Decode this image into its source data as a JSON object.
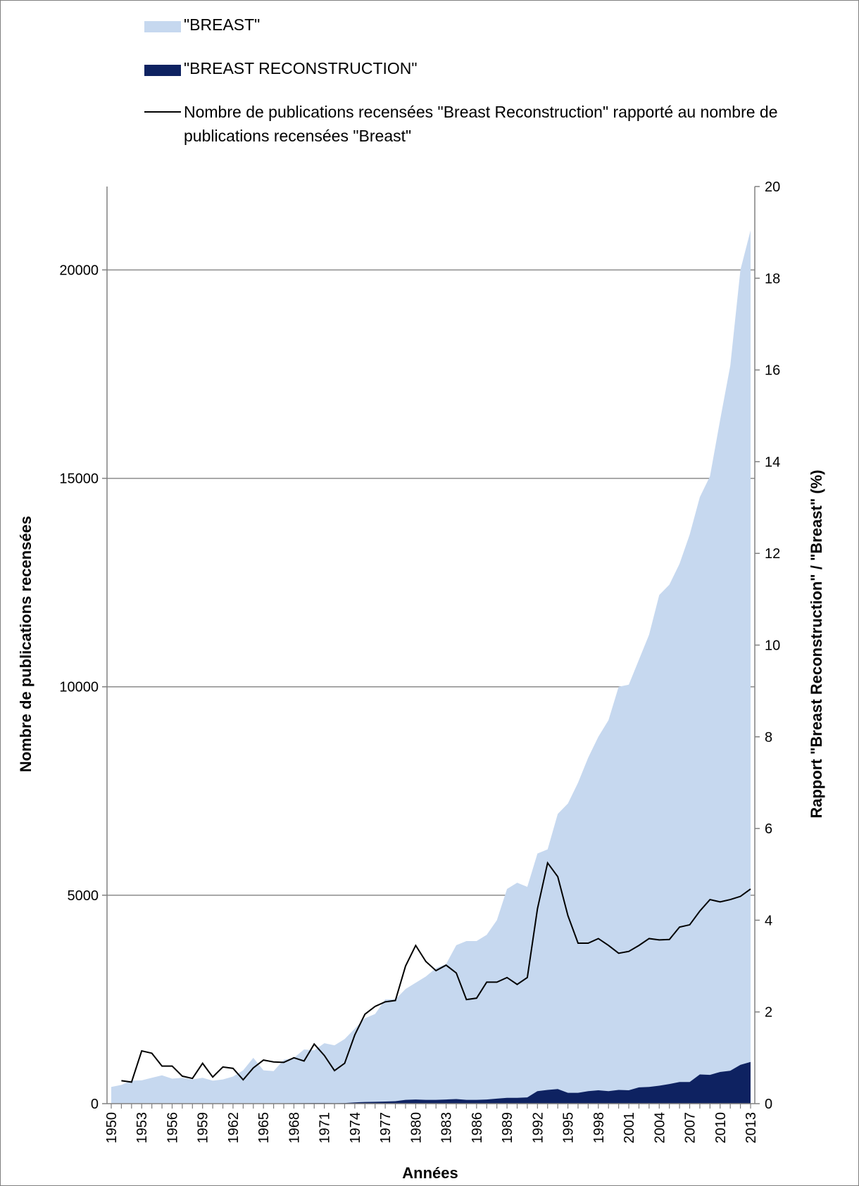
{
  "chart_data": {
    "type": "area",
    "xlabel": "Années",
    "ylabel": "Nombre de publications recensées",
    "y2label": "Rapport \"Breast Reconstruction\" / \"Breast\" (%)",
    "ylim": [
      0,
      22000
    ],
    "y2lim": [
      0,
      20
    ],
    "yticks": [
      0,
      5000,
      10000,
      15000,
      20000
    ],
    "y2ticks": [
      0,
      2,
      4,
      6,
      8,
      10,
      12,
      14,
      16,
      18,
      20
    ],
    "grid": true,
    "legend_position": "top",
    "x": [
      1950,
      1951,
      1952,
      1953,
      1954,
      1955,
      1956,
      1957,
      1958,
      1959,
      1960,
      1961,
      1962,
      1963,
      1964,
      1965,
      1966,
      1967,
      1968,
      1969,
      1970,
      1971,
      1972,
      1973,
      1974,
      1975,
      1976,
      1977,
      1978,
      1979,
      1980,
      1981,
      1982,
      1983,
      1984,
      1985,
      1986,
      1987,
      1988,
      1989,
      1990,
      1991,
      1992,
      1993,
      1994,
      1995,
      1996,
      1997,
      1998,
      1999,
      2000,
      2001,
      2002,
      2003,
      2004,
      2005,
      2006,
      2007,
      2008,
      2009,
      2010,
      2011,
      2012,
      2013
    ],
    "xtick_labels": [
      "1950",
      "1953",
      "1956",
      "1959",
      "1962",
      "1965",
      "1968",
      "1971",
      "1974",
      "1977",
      "1980",
      "1983",
      "1986",
      "1989",
      "1992",
      "1995",
      "1998",
      "2001",
      "2004",
      "2007",
      "2010",
      "2013"
    ],
    "series": [
      {
        "name": "\"BREAST\"",
        "type": "area",
        "axis": "left",
        "color": "#c6d8ef",
        "values": [
          400,
          450,
          550,
          560,
          620,
          680,
          600,
          620,
          580,
          620,
          550,
          580,
          650,
          800,
          1100,
          800,
          780,
          1050,
          1100,
          1300,
          1280,
          1450,
          1400,
          1550,
          1800,
          2050,
          2150,
          2500,
          2500,
          2750,
          2900,
          3050,
          3250,
          3350,
          3800,
          3900,
          3900,
          4050,
          4400,
          5150,
          5300,
          5200,
          6000,
          6100,
          6950,
          7200,
          7700,
          8300,
          8800,
          9200,
          10000,
          10050,
          10650,
          11250,
          12200,
          12450,
          12950,
          13650,
          14550,
          15050,
          16400,
          17700,
          20000,
          20950
        ]
      },
      {
        "name": "\"BREAST RECONSTRUCTION\"",
        "type": "area",
        "axis": "left",
        "color": "#0e2261",
        "values": [
          2,
          3,
          4,
          5,
          5,
          5,
          4,
          4,
          4,
          5,
          4,
          4,
          5,
          4,
          8,
          7,
          7,
          9,
          10,
          13,
          15,
          15,
          10,
          14,
          30,
          40,
          45,
          50,
          60,
          90,
          100,
          90,
          90,
          100,
          110,
          90,
          90,
          100,
          120,
          140,
          140,
          150,
          300,
          330,
          350,
          260,
          260,
          300,
          320,
          300,
          330,
          320,
          390,
          400,
          430,
          470,
          520,
          520,
          700,
          690,
          760,
          790,
          930,
          1000
        ]
      },
      {
        "name": "Nombre de publications recensées \"Breast Reconstruction\" rapporté au nombre de publications recensées \"Breast\"",
        "type": "line",
        "axis": "right",
        "color": "#000000",
        "values": [
          null,
          0.5,
          0.47,
          1.15,
          1.1,
          0.82,
          0.82,
          0.6,
          0.55,
          0.88,
          0.58,
          0.8,
          0.77,
          0.52,
          0.78,
          0.95,
          0.91,
          0.9,
          1.0,
          0.93,
          1.3,
          1.05,
          0.72,
          0.88,
          1.5,
          1.95,
          2.12,
          2.22,
          2.25,
          3.0,
          3.45,
          3.1,
          2.9,
          3.02,
          2.85,
          2.27,
          2.3,
          2.65,
          2.65,
          2.75,
          2.6,
          2.75,
          4.25,
          5.25,
          4.95,
          4.1,
          3.5,
          3.5,
          3.6,
          3.45,
          3.28,
          3.32,
          3.45,
          3.6,
          3.57,
          3.58,
          3.85,
          3.9,
          4.2,
          4.45,
          4.4,
          4.45,
          4.52,
          4.68
        ]
      }
    ]
  }
}
